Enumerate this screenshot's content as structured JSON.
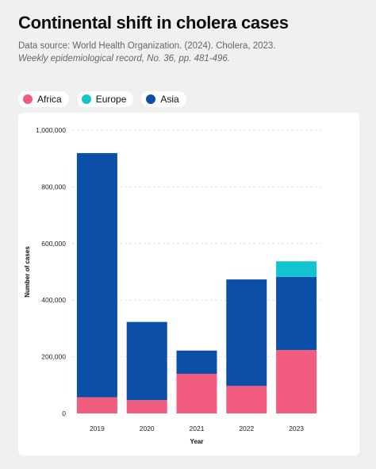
{
  "header": {
    "title": "Continental shift in cholera cases",
    "source_line1": "Data source: World Health Organization. (2024). Cholera, 2023.",
    "source_line2": "Weekly epidemiological record, No. 36, pp. 481-496."
  },
  "chart_data": {
    "type": "bar",
    "stacked": true,
    "title": "Continental shift in cholera cases",
    "xlabel": "Year",
    "ylabel": "Number of cases",
    "ylim": [
      0,
      1000000
    ],
    "yticks": [
      0,
      200000,
      400000,
      600000,
      800000,
      1000000
    ],
    "ytick_labels": [
      "0",
      "200,000",
      "400,000",
      "600,000",
      "800,000",
      "1,000,000"
    ],
    "categories": [
      "2019",
      "2020",
      "2021",
      "2022",
      "2023"
    ],
    "series": [
      {
        "name": "Africa",
        "color": "#f25c7e",
        "values": [
          57000,
          47000,
          140000,
          97000,
          224000
        ]
      },
      {
        "name": "Asia",
        "color": "#0b4fa8",
        "values": [
          862000,
          276000,
          82000,
          376000,
          258000
        ]
      },
      {
        "name": "Europe",
        "color": "#12c4cf",
        "values": [
          0,
          0,
          0,
          0,
          55000
        ]
      }
    ],
    "legend": {
      "position": "top-left",
      "order": [
        "Africa",
        "Europe",
        "Asia"
      ]
    },
    "grid": true
  }
}
